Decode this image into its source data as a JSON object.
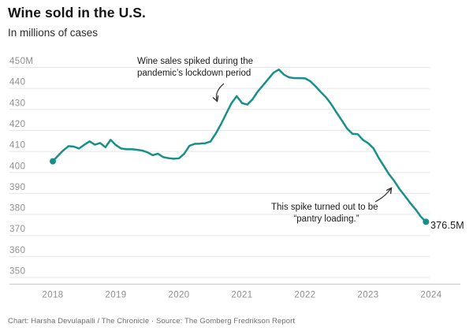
{
  "header": {
    "title": "Wine sold in the U.S.",
    "subtitle": "In millions of cases"
  },
  "annotations": {
    "lockdown": {
      "line1": "Wine sales spiked during the",
      "line2": "pandemic’s lockdown period"
    },
    "pantry": {
      "line1": "This spike turned out to be",
      "line2": "“pantry loading.”"
    },
    "end_label": "376.5M"
  },
  "footer": {
    "credit": "Chart: Harsha Devulapalli / The Chronicle · Source: The Gomberg Fredrikson Report"
  },
  "chart_data": {
    "type": "line",
    "title": "Wine sold in the U.S.",
    "subtitle": "In millions of cases",
    "unit": "millions of cases",
    "frequency": "monthly",
    "x_start": "2018-01",
    "x_end": "2023-12",
    "x_tick_labels": [
      "2018",
      "2019",
      "2020",
      "2021",
      "2022",
      "2023",
      "2024"
    ],
    "y_ticks": [
      {
        "label": "450M",
        "value": 450
      },
      {
        "label": "440",
        "value": 440
      },
      {
        "label": "430",
        "value": 430
      },
      {
        "label": "420",
        "value": 420
      },
      {
        "label": "410",
        "value": 410
      },
      {
        "label": "400",
        "value": 400
      },
      {
        "label": "390",
        "value": 390
      },
      {
        "label": "380",
        "value": 380
      },
      {
        "label": "370",
        "value": 370
      },
      {
        "label": "360",
        "value": 360
      },
      {
        "label": "350",
        "value": 350
      }
    ],
    "ylim": [
      350,
      450
    ],
    "grid": "horizontal",
    "line_color": "#18908a",
    "end_point_label": "376.5M",
    "series": [
      {
        "name": "Wine sold in the U.S. (millions of cases)",
        "color": "#18908a",
        "values": [
          405.3,
          408.0,
          410.5,
          412.5,
          412.3,
          411.4,
          413.2,
          414.8,
          413.2,
          414.0,
          412.0,
          415.5,
          413.0,
          411.4,
          411.0,
          411.1,
          410.8,
          410.4,
          409.6,
          408.2,
          408.9,
          407.3,
          406.8,
          406.5,
          406.7,
          408.9,
          412.7,
          413.6,
          413.7,
          413.9,
          414.7,
          418.5,
          423.0,
          428.0,
          433.0,
          436.3,
          433.0,
          432.3,
          434.8,
          438.5,
          441.5,
          444.5,
          447.5,
          449.0,
          446.5,
          445.2,
          444.9,
          444.9,
          444.8,
          443.4,
          441.0,
          438.2,
          435.7,
          432.4,
          428.5,
          424.7,
          420.9,
          418.4,
          418.2,
          415.5,
          413.9,
          411.5,
          407.0,
          403.0,
          399.0,
          395.8,
          392.0,
          388.8,
          385.5,
          382.5,
          379.0,
          376.5
        ]
      }
    ]
  }
}
